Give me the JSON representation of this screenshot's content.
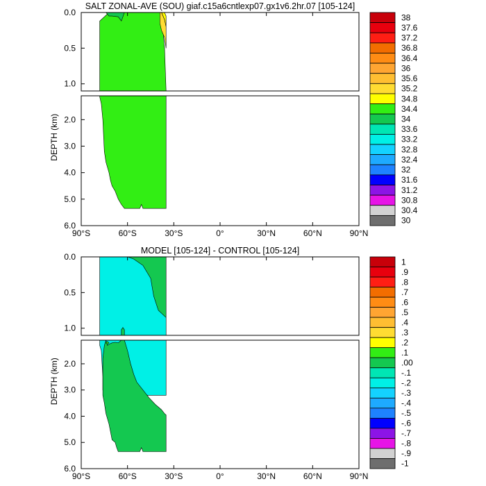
{
  "chart_data": [
    {
      "type": "heatmap",
      "title": "SALT ZONAL-AVE (SOU) giaf.c15a6cntlexp07.gx1v6.2hr.07 [105-124]",
      "ylabel": "DEPTH (km)",
      "x_ticks": [
        "90°S",
        "60°S",
        "30°S",
        "0°",
        "30°N",
        "60°N",
        "90°N"
      ],
      "y_ticks_upper": [
        "0.0",
        "0.5",
        "1.0"
      ],
      "y_ticks_lower": [
        "2.0",
        "3.0",
        "4.0",
        "5.0",
        "6.0"
      ],
      "x_range": [
        -90,
        90
      ],
      "depth_range_upper_km": [
        0,
        1.1
      ],
      "depth_range_lower_km": [
        1.1,
        6.0
      ],
      "colorbar": {
        "labels": [
          "38",
          "37.6",
          "37.2",
          "36.8",
          "36.4",
          "36",
          "35.6",
          "35.2",
          "34.8",
          "34.4",
          "34",
          "33.6",
          "33.2",
          "32.8",
          "32.4",
          "32",
          "31.6",
          "31.2",
          "30.8",
          "30.4",
          "30"
        ],
        "colors": [
          "#c8000a",
          "#e8000e",
          "#ff1e14",
          "#f26d00",
          "#ff8c14",
          "#ffa532",
          "#ffbe32",
          "#ffdc32",
          "#ffff00",
          "#32ee14",
          "#14c850",
          "#00e6b4",
          "#00f0e6",
          "#14d2ff",
          "#1eaaff",
          "#1e82ff",
          "#0000ff",
          "#8c14e6",
          "#e614e6",
          "#d2d2d2",
          "#6e6e6e"
        ]
      },
      "regions": [
        {
          "value_band": "34.4-34.8",
          "color": "#32ee14",
          "polygon_upper": [
            [
              -78,
              1.1
            ],
            [
              -78,
              0.12
            ],
            [
              -72,
              0.0
            ],
            [
              -57,
              0.0
            ],
            [
              -42,
              0.0
            ],
            [
              -38,
              0.0
            ],
            [
              -36,
              0.5
            ],
            [
              -35,
              1.1
            ]
          ],
          "polygon_lower": [
            [
              -78,
              1.1
            ],
            [
              -78,
              1.15
            ],
            [
              -77,
              1.4
            ],
            [
              -76,
              2.0
            ],
            [
              -75,
              3.2
            ],
            [
              -74,
              3.6
            ],
            [
              -72,
              4.0
            ],
            [
              -71,
              4.3
            ],
            [
              -70,
              4.5
            ],
            [
              -68,
              4.7
            ],
            [
              -66,
              5.0
            ],
            [
              -64,
              5.2
            ],
            [
              -62,
              5.35
            ],
            [
              -52,
              5.35
            ],
            [
              -51,
              5.2
            ],
            [
              -50,
              5.35
            ],
            [
              -35,
              5.35
            ],
            [
              -35,
              1.1
            ]
          ]
        },
        {
          "value_band": "34.0-34.4",
          "color": "#14c850",
          "polygon_upper": [
            [
              -77,
              0.0
            ],
            [
              -74,
              0.0
            ],
            [
              -72,
              0.05
            ],
            [
              -70,
              0.05
            ],
            [
              -66,
              0.06
            ],
            [
              -64,
              0.12
            ],
            [
              -62,
              0.0
            ]
          ]
        },
        {
          "value_band": "34.8-35.2",
          "color": "#ffff00",
          "polygon_upper": [
            [
              -38,
              0.0
            ],
            [
              -36,
              0.0
            ],
            [
              -35,
              0.05
            ],
            [
              -35,
              0.2
            ],
            [
              -36,
              0.1
            ],
            [
              -37,
              0.05
            ]
          ]
        },
        {
          "value_band": "35.2-35.6",
          "color": "#ffdc32",
          "polygon_upper": [
            [
              -39,
              0.0
            ],
            [
              -38,
              0.0
            ],
            [
              -37,
              0.05
            ],
            [
              -36,
              0.1
            ],
            [
              -35,
              0.2
            ],
            [
              -35,
              0.5
            ],
            [
              -36,
              0.35
            ],
            [
              -38,
              0.25
            ],
            [
              -39,
              0.15
            ]
          ]
        }
      ]
    },
    {
      "type": "heatmap",
      "title": "MODEL [105-124] - CONTROL [105-124]",
      "ylabel": "DEPTH (km)",
      "x_ticks": [
        "90°S",
        "60°S",
        "30°S",
        "0°",
        "30°N",
        "60°N",
        "90°N"
      ],
      "y_ticks_upper": [
        "0.0",
        "0.5",
        "1.0"
      ],
      "y_ticks_lower": [
        "2.0",
        "3.0",
        "4.0",
        "5.0",
        "6.0"
      ],
      "x_range": [
        -90,
        90
      ],
      "depth_range_upper_km": [
        0,
        1.1
      ],
      "depth_range_lower_km": [
        1.1,
        6.0
      ],
      "colorbar": {
        "labels": [
          "1",
          ".9",
          ".8",
          ".7",
          ".6",
          ".5",
          ".4",
          ".3",
          ".2",
          ".1",
          ".00",
          "-.1",
          "-.2",
          "-.3",
          "-.4",
          "-.5",
          "-.6",
          "-.7",
          "-.8",
          "-.9",
          "-1"
        ],
        "colors": [
          "#c8000a",
          "#e8000e",
          "#ff1e14",
          "#f26d00",
          "#ff8c14",
          "#ffa532",
          "#ffbe32",
          "#ffdc32",
          "#ffff00",
          "#32ee14",
          "#14c850",
          "#00e6b4",
          "#00f0e6",
          "#14d2ff",
          "#1eaaff",
          "#1e82ff",
          "#0000ff",
          "#8c14e6",
          "#e614e6",
          "#d2d2d2",
          "#6e6e6e"
        ]
      },
      "regions": [
        {
          "value_band": "-0.1-0.0",
          "color": "#00f0e6",
          "polygon_upper": [
            [
              -78,
              1.1
            ],
            [
              -78,
              0.0
            ],
            [
              -35,
              0.0
            ],
            [
              -35,
              1.1
            ]
          ],
          "polygon_lower": [
            [
              -78,
              1.1
            ],
            [
              -78,
              1.3
            ],
            [
              -77,
              1.5
            ],
            [
              -76,
              2.5
            ],
            [
              -76,
              3.0
            ],
            [
              -75,
              3.2
            ],
            [
              -35,
              3.2
            ],
            [
              -35,
              1.1
            ]
          ]
        },
        {
          "value_band": "0.0-0.1",
          "color": "#14c850",
          "polygon_upper": [
            [
              -60,
              0.0
            ],
            [
              -35,
              0.0
            ],
            [
              -35,
              0.85
            ],
            [
              -40,
              0.75
            ],
            [
              -43,
              0.55
            ],
            [
              -45,
              0.3
            ],
            [
              -50,
              0.12
            ],
            [
              -56,
              0.03
            ]
          ],
          "polygon_upper_b": [
            [
              -64,
              1.1
            ],
            [
              -64,
              1.02
            ],
            [
              -63,
              0.99
            ],
            [
              -62,
              1.02
            ],
            [
              -62,
              1.1
            ]
          ],
          "polygon_lower": [
            [
              -74,
              1.1
            ],
            [
              -73,
              1.3
            ],
            [
              -72,
              1.25
            ],
            [
              -70,
              1.2
            ],
            [
              -68,
              1.18
            ],
            [
              -66,
              1.2
            ],
            [
              -64,
              1.1
            ],
            [
              -62,
              1.1
            ],
            [
              -60,
              1.5
            ],
            [
              -58,
              2.0
            ],
            [
              -56,
              2.4
            ],
            [
              -54,
              2.7
            ],
            [
              -50,
              3.0
            ],
            [
              -46,
              3.3
            ],
            [
              -42,
              3.55
            ],
            [
              -38,
              3.75
            ],
            [
              -36,
              3.9
            ],
            [
              -35,
              3.95
            ],
            [
              -35,
              5.35
            ],
            [
              -50,
              5.35
            ],
            [
              -51,
              5.2
            ],
            [
              -52,
              5.35
            ],
            [
              -66,
              5.35
            ],
            [
              -67,
              5.2
            ],
            [
              -68,
              5.0
            ],
            [
              -70,
              4.9
            ],
            [
              -71,
              4.6
            ],
            [
              -72,
              4.3
            ],
            [
              -74,
              3.9
            ],
            [
              -75,
              3.5
            ],
            [
              -76,
              3.2
            ],
            [
              -76,
              1.8
            ],
            [
              -75,
              1.3
            ]
          ]
        },
        {
          "value_band": "0.1-0.2",
          "color": "#32ee14",
          "polygon_lower": [
            [
              -74,
              1.2
            ],
            [
              -73,
              1.15
            ],
            [
              -72,
              1.2
            ],
            [
              -73,
              1.25
            ]
          ]
        }
      ]
    }
  ]
}
